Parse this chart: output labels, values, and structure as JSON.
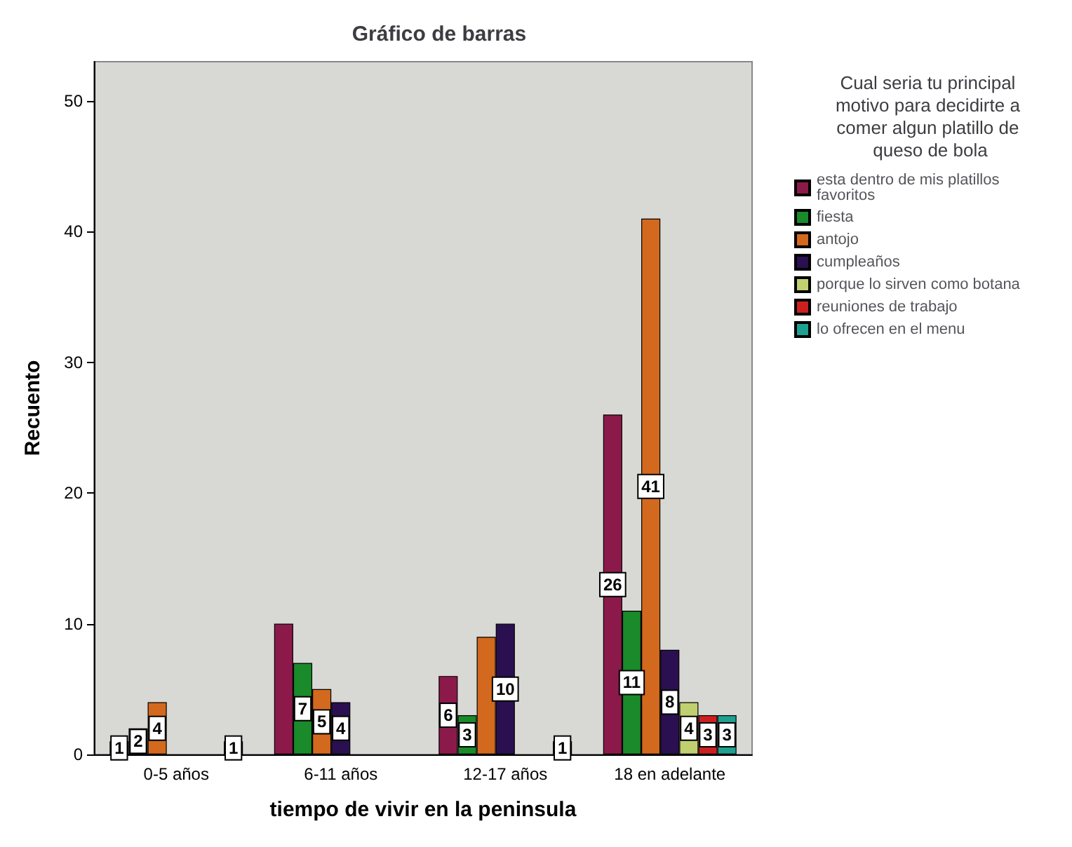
{
  "chart_data": {
    "type": "bar",
    "title": "Gráfico de barras",
    "xlabel": "tiempo de vivir en la peninsula",
    "ylabel": "Recuento",
    "legend_title": "Cual seria tu principal motivo para decidirte a comer algun platillo de queso de bola",
    "categories": [
      "0-5 años",
      "6-11 años",
      "12-17 años",
      "18 en adelante"
    ],
    "series": [
      {
        "name": "esta dentro de mis platillos favoritos",
        "color": "#8b1a4a",
        "values": [
          1,
          10,
          6,
          26
        ],
        "value_labels": [
          "1",
          null,
          "6",
          "26"
        ]
      },
      {
        "name": "fiesta",
        "color": "#1a8a2a",
        "values": [
          2,
          7,
          3,
          11
        ],
        "value_labels": [
          "2",
          "7",
          "3",
          "11"
        ]
      },
      {
        "name": "antojo",
        "color": "#d2691e",
        "values": [
          4,
          5,
          9,
          41
        ],
        "value_labels": [
          "4",
          "5",
          null,
          "41"
        ]
      },
      {
        "name": "cumpleaños",
        "color": "#2a1050",
        "values": [
          null,
          4,
          10,
          8
        ],
        "value_labels": [
          null,
          "4",
          "10",
          "8"
        ]
      },
      {
        "name": "porque lo sirven como botana",
        "color": "#c0d070",
        "values": [
          null,
          null,
          null,
          4
        ],
        "value_labels": [
          null,
          null,
          null,
          "4"
        ]
      },
      {
        "name": "reuniones de trabajo",
        "color": "#cc2020",
        "values": [
          null,
          null,
          null,
          3
        ],
        "value_labels": [
          null,
          null,
          null,
          "3"
        ]
      },
      {
        "name": "lo ofrecen en el menu",
        "color": "#20a090",
        "values": [
          1,
          null,
          1,
          3
        ],
        "value_labels": [
          "1",
          null,
          "1",
          "3"
        ]
      }
    ],
    "ylim": [
      0,
      53
    ],
    "yticks": [
      0,
      10,
      20,
      30,
      40,
      50
    ],
    "grid": false,
    "legend": "right"
  }
}
